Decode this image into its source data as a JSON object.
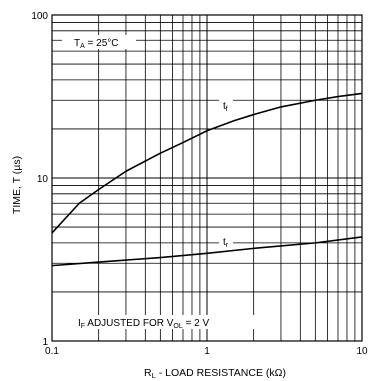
{
  "chart_data": {
    "type": "line",
    "x_scale": "log",
    "y_scale": "log",
    "xlim": [
      0.1,
      10
    ],
    "ylim": [
      1,
      100
    ],
    "x_tick_labels": [
      "0.1",
      "1",
      "10"
    ],
    "y_tick_labels": [
      "1",
      "10",
      "100"
    ],
    "xlabel": {
      "main": "R",
      "sub": "L",
      "rest": " - LOAD RESISTANCE (kΩ)"
    },
    "ylabel": "TIME, T (µs)",
    "grid": true,
    "series": [
      {
        "name": {
          "main": "t",
          "sub": "f"
        },
        "x": [
          0.1,
          0.15,
          0.2,
          0.3,
          0.5,
          0.7,
          1,
          1.5,
          2,
          3,
          5,
          7,
          10
        ],
        "y": [
          4.6,
          7.0,
          8.5,
          11,
          14.2,
          16.5,
          19.5,
          22.5,
          24.5,
          27.3,
          30,
          31.6,
          33
        ]
      },
      {
        "name": {
          "main": "t",
          "sub": "r"
        },
        "x": [
          0.1,
          0.2,
          0.5,
          1,
          2,
          5,
          10
        ],
        "y": [
          2.9,
          3.05,
          3.25,
          3.45,
          3.7,
          4.0,
          4.35
        ]
      }
    ],
    "annotations": {
      "temp": {
        "main": "T",
        "sub": "A",
        "rest": " = 25°C"
      },
      "condition": {
        "main1": "I",
        "sub1": "F",
        "mid": " ADJUSTED FOR V",
        "sub2": "OL",
        "rest": " = 2 V"
      }
    }
  }
}
